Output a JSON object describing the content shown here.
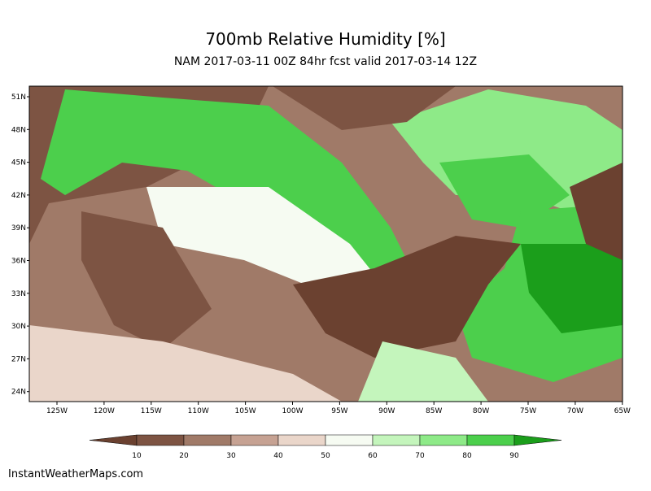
{
  "title": "700mb Relative Humidity [%]",
  "subtitle": "NAM 2017-03-11 00Z 84hr fcst valid 2017-03-14 12Z",
  "lat_labels": [
    "51N",
    "48N",
    "45N",
    "42N",
    "39N",
    "36N",
    "33N",
    "30N",
    "27N",
    "24N"
  ],
  "lon_labels": [
    "125W",
    "120W",
    "115W",
    "110W",
    "105W",
    "100W",
    "95W",
    "90W",
    "85W",
    "80W",
    "75W",
    "70W",
    "65W"
  ],
  "colorbar": {
    "labels": [
      10,
      20,
      30,
      40,
      50,
      60,
      70,
      80,
      90
    ],
    "colors": [
      "#6b4130",
      "#7d5443",
      "#a07a68",
      "#c6a293",
      "#ead6ca",
      "#f6fbf2",
      "#c4f5bc",
      "#8eea88",
      "#4ccf4c",
      "#1b9e1b"
    ]
  },
  "credit": "InstantWeatherMaps.com"
}
